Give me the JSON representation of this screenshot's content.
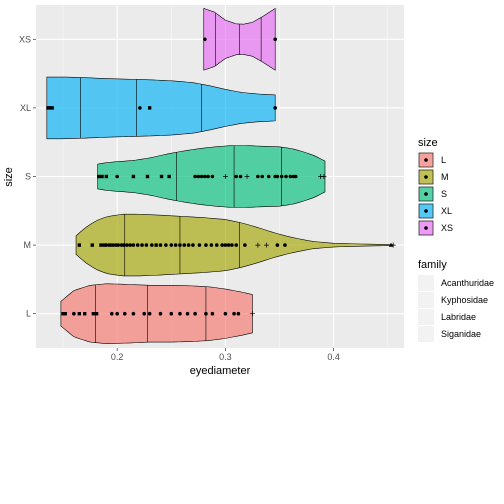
{
  "chart_data": {
    "type": "violin",
    "xlabel": "eyediameter",
    "ylabel": "size",
    "xlim": [
      0.125,
      0.465
    ],
    "x_ticks": [
      0.2,
      0.3,
      0.4
    ],
    "x_tick_labels": [
      "0.2",
      "0.3",
      "0.4"
    ],
    "categories": [
      "L",
      "M",
      "S",
      "XL",
      "XS"
    ],
    "grid": true,
    "legend_placement": "right",
    "colors": {
      "L": "#F8766D",
      "M": "#A3A500",
      "S": "#00BF7D",
      "XL": "#00B0F6",
      "XS": "#E76BF3"
    },
    "legends": [
      {
        "title": "size",
        "entries": [
          "L",
          "M",
          "S",
          "XL",
          "XS"
        ]
      },
      {
        "title": "family",
        "entries": [
          "Acanthuridae",
          "Kyphosidae",
          "Labridae",
          "Siganidae"
        ]
      }
    ],
    "series": [
      {
        "name": "L",
        "min": 0.148,
        "max": 0.325,
        "quantiles": [
          0.18,
          0.228,
          0.282
        ],
        "profile": [
          [
            0.148,
            0.4
          ],
          [
            0.16,
            0.75
          ],
          [
            0.175,
            0.92
          ],
          [
            0.19,
            0.97
          ],
          [
            0.21,
            0.95
          ],
          [
            0.23,
            0.92
          ],
          [
            0.25,
            0.92
          ],
          [
            0.27,
            0.9
          ],
          [
            0.285,
            0.87
          ],
          [
            0.3,
            0.8
          ],
          [
            0.315,
            0.7
          ],
          [
            0.325,
            0.62
          ]
        ],
        "points": [
          {
            "x": 0.15,
            "f": "Labridae"
          },
          {
            "x": 0.152,
            "f": "Labridae"
          },
          {
            "x": 0.16,
            "f": "Acanthuridae"
          },
          {
            "x": 0.165,
            "f": "Labridae"
          },
          {
            "x": 0.17,
            "f": "Labridae"
          },
          {
            "x": 0.178,
            "f": "Labridae"
          },
          {
            "x": 0.181,
            "f": "Labridae"
          },
          {
            "x": 0.195,
            "f": "Acanthuridae"
          },
          {
            "x": 0.2,
            "f": "Acanthuridae"
          },
          {
            "x": 0.207,
            "f": "Acanthuridae"
          },
          {
            "x": 0.215,
            "f": "Acanthuridae"
          },
          {
            "x": 0.225,
            "f": "Acanthuridae"
          },
          {
            "x": 0.23,
            "f": "Acanthuridae"
          },
          {
            "x": 0.24,
            "f": "Acanthuridae"
          },
          {
            "x": 0.25,
            "f": "Acanthuridae"
          },
          {
            "x": 0.258,
            "f": "Acanthuridae"
          },
          {
            "x": 0.265,
            "f": "Acanthuridae"
          },
          {
            "x": 0.272,
            "f": "Acanthuridae"
          },
          {
            "x": 0.282,
            "f": "Acanthuridae"
          },
          {
            "x": 0.288,
            "f": "Acanthuridae"
          },
          {
            "x": 0.3,
            "f": "Acanthuridae"
          },
          {
            "x": 0.308,
            "f": "Acanthuridae"
          },
          {
            "x": 0.312,
            "f": "Acanthuridae"
          },
          {
            "x": 0.325,
            "f": "Siganidae"
          }
        ]
      },
      {
        "name": "M",
        "min": 0.162,
        "max": 0.455,
        "quantiles": [
          0.207,
          0.258,
          0.313
        ],
        "profile": [
          [
            0.162,
            0.3
          ],
          [
            0.17,
            0.55
          ],
          [
            0.18,
            0.78
          ],
          [
            0.19,
            0.92
          ],
          [
            0.205,
            1.0
          ],
          [
            0.22,
            1.0
          ],
          [
            0.24,
            0.97
          ],
          [
            0.26,
            0.93
          ],
          [
            0.28,
            0.89
          ],
          [
            0.3,
            0.83
          ],
          [
            0.315,
            0.72
          ],
          [
            0.33,
            0.57
          ],
          [
            0.345,
            0.4
          ],
          [
            0.36,
            0.26
          ],
          [
            0.38,
            0.12
          ],
          [
            0.4,
            0.06
          ],
          [
            0.42,
            0.04
          ],
          [
            0.44,
            0.025
          ],
          [
            0.455,
            0.015
          ]
        ],
        "points": [
          {
            "x": 0.165,
            "f": "Labridae"
          },
          {
            "x": 0.177,
            "f": "Labridae"
          },
          {
            "x": 0.185,
            "f": "Labridae"
          },
          {
            "x": 0.188,
            "f": "Labridae"
          },
          {
            "x": 0.19,
            "f": "Acanthuridae"
          },
          {
            "x": 0.193,
            "f": "Labridae"
          },
          {
            "x": 0.196,
            "f": "Labridae"
          },
          {
            "x": 0.199,
            "f": "Acanthuridae"
          },
          {
            "x": 0.201,
            "f": "Acanthuridae"
          },
          {
            "x": 0.204,
            "f": "Acanthuridae"
          },
          {
            "x": 0.206,
            "f": "Acanthuridae"
          },
          {
            "x": 0.209,
            "f": "Acanthuridae"
          },
          {
            "x": 0.212,
            "f": "Acanthuridae"
          },
          {
            "x": 0.215,
            "f": "Acanthuridae"
          },
          {
            "x": 0.219,
            "f": "Acanthuridae"
          },
          {
            "x": 0.223,
            "f": "Acanthuridae"
          },
          {
            "x": 0.227,
            "f": "Acanthuridae"
          },
          {
            "x": 0.232,
            "f": "Acanthuridae"
          },
          {
            "x": 0.236,
            "f": "Labridae"
          },
          {
            "x": 0.24,
            "f": "Acanthuridae"
          },
          {
            "x": 0.245,
            "f": "Acanthuridae"
          },
          {
            "x": 0.25,
            "f": "Acanthuridae"
          },
          {
            "x": 0.254,
            "f": "Acanthuridae"
          },
          {
            "x": 0.258,
            "f": "Acanthuridae"
          },
          {
            "x": 0.262,
            "f": "Acanthuridae"
          },
          {
            "x": 0.266,
            "f": "Acanthuridae"
          },
          {
            "x": 0.27,
            "f": "Acanthuridae"
          },
          {
            "x": 0.276,
            "f": "Acanthuridae"
          },
          {
            "x": 0.282,
            "f": "Acanthuridae"
          },
          {
            "x": 0.287,
            "f": "Acanthuridae"
          },
          {
            "x": 0.292,
            "f": "Acanthuridae"
          },
          {
            "x": 0.297,
            "f": "Acanthuridae"
          },
          {
            "x": 0.3,
            "f": "Acanthuridae"
          },
          {
            "x": 0.303,
            "f": "Acanthuridae"
          },
          {
            "x": 0.306,
            "f": "Acanthuridae"
          },
          {
            "x": 0.31,
            "f": "Acanthuridae"
          },
          {
            "x": 0.318,
            "f": "Acanthuridae"
          },
          {
            "x": 0.33,
            "f": "Siganidae"
          },
          {
            "x": 0.338,
            "f": "Siganidae"
          },
          {
            "x": 0.348,
            "f": "Acanthuridae"
          },
          {
            "x": 0.355,
            "f": "Acanthuridae"
          },
          {
            "x": 0.453,
            "f": "Kyphosidae"
          },
          {
            "x": 0.455,
            "f": "Siganidae"
          }
        ]
      },
      {
        "name": "S",
        "min": 0.182,
        "max": 0.392,
        "quantiles": [
          0.255,
          0.308,
          0.352
        ],
        "profile": [
          [
            0.182,
            0.4
          ],
          [
            0.19,
            0.45
          ],
          [
            0.2,
            0.48
          ],
          [
            0.215,
            0.52
          ],
          [
            0.23,
            0.6
          ],
          [
            0.245,
            0.72
          ],
          [
            0.26,
            0.82
          ],
          [
            0.275,
            0.9
          ],
          [
            0.29,
            0.96
          ],
          [
            0.305,
            1.0
          ],
          [
            0.32,
            1.0
          ],
          [
            0.335,
            0.98
          ],
          [
            0.35,
            0.96
          ],
          [
            0.362,
            0.9
          ],
          [
            0.372,
            0.8
          ],
          [
            0.382,
            0.68
          ],
          [
            0.392,
            0.5
          ]
        ],
        "points": [
          {
            "x": 0.183,
            "f": "Labridae"
          },
          {
            "x": 0.186,
            "f": "Labridae"
          },
          {
            "x": 0.19,
            "f": "Labridae"
          },
          {
            "x": 0.2,
            "f": "Acanthuridae"
          },
          {
            "x": 0.215,
            "f": "Labridae"
          },
          {
            "x": 0.228,
            "f": "Labridae"
          },
          {
            "x": 0.241,
            "f": "Labridae"
          },
          {
            "x": 0.248,
            "f": "Labridae"
          },
          {
            "x": 0.272,
            "f": "Acanthuridae"
          },
          {
            "x": 0.275,
            "f": "Acanthuridae"
          },
          {
            "x": 0.278,
            "f": "Acanthuridae"
          },
          {
            "x": 0.281,
            "f": "Acanthuridae"
          },
          {
            "x": 0.284,
            "f": "Acanthuridae"
          },
          {
            "x": 0.288,
            "f": "Acanthuridae"
          },
          {
            "x": 0.3,
            "f": "Siganidae"
          },
          {
            "x": 0.31,
            "f": "Acanthuridae"
          },
          {
            "x": 0.314,
            "f": "Acanthuridae"
          },
          {
            "x": 0.32,
            "f": "Siganidae"
          },
          {
            "x": 0.33,
            "f": "Acanthuridae"
          },
          {
            "x": 0.334,
            "f": "Acanthuridae"
          },
          {
            "x": 0.34,
            "f": "Acanthuridae"
          },
          {
            "x": 0.346,
            "f": "Acanthuridae"
          },
          {
            "x": 0.348,
            "f": "Acanthuridae"
          },
          {
            "x": 0.352,
            "f": "Acanthuridae"
          },
          {
            "x": 0.356,
            "f": "Acanthuridae"
          },
          {
            "x": 0.36,
            "f": "Acanthuridae"
          },
          {
            "x": 0.363,
            "f": "Acanthuridae"
          },
          {
            "x": 0.365,
            "f": "Acanthuridae"
          },
          {
            "x": 0.388,
            "f": "Siganidae"
          },
          {
            "x": 0.391,
            "f": "Siganidae"
          }
        ]
      },
      {
        "name": "XL",
        "min": 0.135,
        "max": 0.346,
        "quantiles": [
          0.166,
          0.218,
          0.278
        ],
        "profile": [
          [
            0.135,
            1.0
          ],
          [
            0.15,
            1.0
          ],
          [
            0.17,
            0.98
          ],
          [
            0.19,
            0.95
          ],
          [
            0.21,
            0.93
          ],
          [
            0.23,
            0.91
          ],
          [
            0.25,
            0.88
          ],
          [
            0.27,
            0.82
          ],
          [
            0.285,
            0.72
          ],
          [
            0.3,
            0.6
          ],
          [
            0.315,
            0.5
          ],
          [
            0.33,
            0.45
          ],
          [
            0.346,
            0.42
          ]
        ],
        "points": [
          {
            "x": 0.136,
            "f": "Labridae"
          },
          {
            "x": 0.138,
            "f": "Labridae"
          },
          {
            "x": 0.14,
            "f": "Labridae"
          },
          {
            "x": 0.221,
            "f": "Acanthuridae"
          },
          {
            "x": 0.23,
            "f": "Labridae"
          },
          {
            "x": 0.346,
            "f": "Acanthuridae"
          }
        ]
      },
      {
        "name": "XS",
        "min": 0.28,
        "max": 0.346,
        "quantiles": [
          0.291,
          0.313,
          0.333
        ],
        "profile": [
          [
            0.28,
            1.0
          ],
          [
            0.29,
            0.88
          ],
          [
            0.3,
            0.62
          ],
          [
            0.31,
            0.5
          ],
          [
            0.317,
            0.49
          ],
          [
            0.325,
            0.55
          ],
          [
            0.335,
            0.75
          ],
          [
            0.346,
            1.0
          ]
        ],
        "points": [
          {
            "x": 0.281,
            "f": "Acanthuridae"
          },
          {
            "x": 0.346,
            "f": "Acanthuridae"
          }
        ]
      }
    ]
  }
}
